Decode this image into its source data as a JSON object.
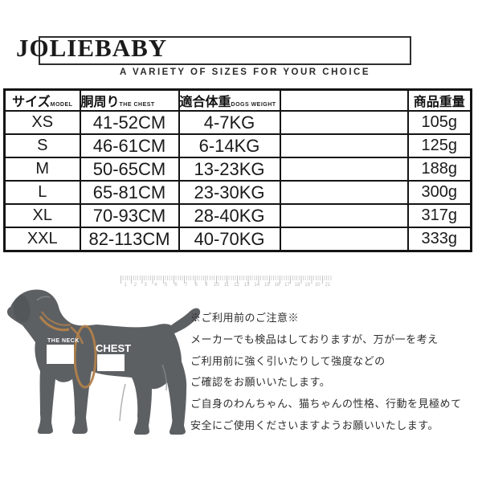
{
  "header": {
    "brand": "JOLIEBABY",
    "tagline": "A VARIETY OF SIZES FOR YOUR CHOICE"
  },
  "size_table": {
    "columns": [
      {
        "jp": "サイズ",
        "en": "MODEL"
      },
      {
        "jp": "胴周り",
        "en": "THE CHEST"
      },
      {
        "jp": "適合体重",
        "en": "DOGS WEIGHT"
      },
      {
        "jp": "",
        "en": ""
      },
      {
        "jp": "商品重量",
        "en": ""
      }
    ],
    "rows": [
      {
        "size": "XS",
        "chest": "41-52CM",
        "weight": "4-7KG",
        "extra": "",
        "product_weight": "105g"
      },
      {
        "size": "S",
        "chest": "46-61CM",
        "weight": "6-14KG",
        "extra": "",
        "product_weight": "125g"
      },
      {
        "size": "M",
        "chest": "50-65CM",
        "weight": "13-23KG",
        "extra": "",
        "product_weight": "188g"
      },
      {
        "size": "L",
        "chest": "65-81CM",
        "weight": "23-30KG",
        "extra": "",
        "product_weight": "300g"
      },
      {
        "size": "XL",
        "chest": "70-93CM",
        "weight": "28-40KG",
        "extra": "",
        "product_weight": "317g"
      },
      {
        "size": "XXL",
        "chest": "82-113CM",
        "weight": "40-70KG",
        "extra": "",
        "product_weight": "333g"
      }
    ]
  },
  "ruler": {
    "numbers": [
      "1",
      "2",
      "3",
      "4",
      "5",
      "6",
      "7",
      "8",
      "9",
      "10",
      "11",
      "12",
      "13",
      "14",
      "15",
      "16",
      "17",
      "18",
      "19",
      "20",
      "21"
    ]
  },
  "diagram": {
    "neck_label": "THE NECK",
    "chest_label": "CHEST",
    "dog_color": "#5d6063",
    "harness_color": "#b0804a"
  },
  "notes": {
    "lines": [
      "※ご利用前のご注意※",
      "メーカーでも検品はしておりますが、万が一を考え",
      "ご利用前に強く引いたりして強度などの",
      "ご確認をお願いいたします。",
      "ご自身のわんちゃん、猫ちゃんの性格、行動を見極めて",
      "安全にご使用くださいますようお願いいたします。"
    ]
  }
}
